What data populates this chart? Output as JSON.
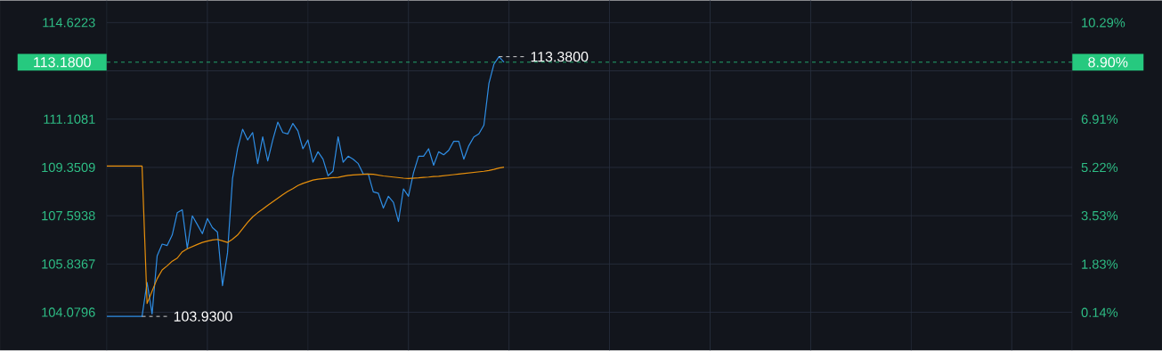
{
  "chart_data": {
    "type": "line",
    "categories": [
      null,
      null,
      null,
      null,
      null,
      null,
      null,
      null,
      null,
      null,
      null,
      null,
      null,
      null,
      null,
      null,
      null,
      null,
      null,
      null,
      null,
      null,
      null,
      null,
      null,
      null,
      null,
      null,
      null,
      null,
      null,
      null,
      null,
      null,
      null,
      null,
      null,
      null,
      null,
      null,
      null,
      null,
      null,
      null,
      null,
      null,
      null,
      null,
      null,
      null,
      null,
      null,
      null,
      null,
      null,
      null,
      null,
      null,
      null,
      null,
      null,
      null,
      null,
      null,
      null,
      null,
      null,
      null,
      null,
      null,
      null,
      null,
      null,
      null,
      null,
      null,
      null,
      null,
      null,
      null,
      null,
      null,
      null,
      null,
      null,
      null,
      null,
      null,
      null,
      null,
      null,
      null,
      null,
      null,
      null,
      null,
      null,
      null,
      null,
      null,
      null,
      null,
      null,
      null,
      null,
      null,
      null,
      null,
      null,
      null,
      null,
      null,
      null,
      null,
      null,
      null,
      null,
      null,
      null,
      null,
      null,
      null,
      null,
      null,
      null,
      null,
      null,
      null,
      null,
      null,
      null,
      null,
      null,
      null,
      null,
      null,
      null,
      null,
      null,
      null,
      null,
      null,
      null,
      null,
      null,
      null,
      null,
      null,
      null,
      null,
      null,
      null,
      null,
      null,
      null,
      null,
      null,
      null,
      null,
      null,
      null,
      null,
      null,
      null,
      null,
      null,
      null,
      null,
      null,
      null,
      null,
      null,
      null,
      null,
      null,
      null,
      null,
      null,
      null,
      null,
      null,
      null,
      null,
      null,
      null,
      null,
      null,
      null,
      null,
      null,
      null,
      null,
      null
    ],
    "ylim": [
      102.69,
      115.43
    ],
    "yticks": [
      104.0796,
      105.8367,
      107.5938,
      109.3509,
      111.1081,
      {
        "value": 112.8652,
        "label": null
      },
      114.6223
    ],
    "y2lim": [
      -1.19,
      11.07
    ],
    "y2ticks": [
      {
        "value": 0.14,
        "label": "0.14%"
      },
      {
        "value": 1.83,
        "label": "1.83%"
      },
      {
        "value": 3.53,
        "label": "3.53%"
      },
      {
        "value": 5.22,
        "label": "5.22%"
      },
      {
        "value": 6.91,
        "label": "6.91%"
      },
      {
        "value": 8.6,
        "label": null
      },
      {
        "value": 10.29,
        "label": "10.29%"
      }
    ],
    "grid": true,
    "series": [
      {
        "color": "#2f8ee5",
        "values": [
          103.93,
          103.93,
          103.93,
          103.93,
          103.93,
          103.93,
          103.93,
          103.93,
          105.16,
          104.02,
          106.13,
          106.56,
          106.51,
          106.89,
          107.7,
          107.81,
          106.41,
          107.59,
          107.27,
          106.94,
          107.49,
          107.16,
          107.0,
          105.05,
          106.24,
          108.95,
          110.03,
          110.74,
          110.35,
          110.62,
          109.49,
          110.46,
          109.59,
          110.35,
          111.0,
          110.62,
          110.57,
          110.95,
          110.68,
          110.03,
          110.35,
          109.54,
          109.92,
          109.65,
          109.05,
          109.22,
          110.46,
          109.54,
          109.76,
          109.65,
          109.49,
          109.11,
          109.11,
          108.46,
          108.41,
          107.87,
          108.3,
          108.08,
          107.38,
          108.57,
          108.3,
          109.16,
          109.76,
          109.76,
          110.03,
          109.43,
          109.92,
          109.81,
          109.97,
          110.3,
          110.3,
          109.65,
          110.14,
          110.46,
          110.57,
          110.89,
          112.41,
          113.11,
          113.38,
          113.18,
          null,
          null,
          null,
          null,
          null,
          null,
          null,
          null,
          null,
          null,
          null,
          null,
          null,
          null,
          null,
          null,
          null,
          null,
          null,
          null,
          null,
          null,
          null,
          null,
          null,
          null,
          null,
          null,
          null,
          null,
          null,
          null,
          null,
          null,
          null,
          null,
          null,
          null,
          null,
          null,
          null,
          null,
          null,
          null,
          null,
          null,
          null,
          null,
          null,
          null,
          null,
          null,
          null,
          null,
          null,
          null,
          null,
          null,
          null,
          null,
          null,
          null,
          null,
          null,
          null,
          null,
          null,
          null,
          null,
          null,
          null,
          null,
          null,
          null,
          null,
          null,
          null,
          null,
          null,
          null,
          null,
          null,
          null,
          null,
          null,
          null,
          null,
          null,
          null,
          null,
          null,
          null,
          null,
          null,
          null,
          null,
          null,
          null,
          null,
          null,
          null,
          null,
          null,
          null,
          null,
          null,
          null,
          null,
          null,
          null,
          null,
          null,
          null
        ]
      },
      {
        "color": "#e8900c",
        "values": [
          109.4,
          109.4,
          109.4,
          109.4,
          109.4,
          109.4,
          109.4,
          109.4,
          104.4,
          104.85,
          105.3,
          105.62,
          105.77,
          105.94,
          106.05,
          106.28,
          106.39,
          106.47,
          106.55,
          106.62,
          106.67,
          106.71,
          106.73,
          106.68,
          106.62,
          106.74,
          106.89,
          107.12,
          107.35,
          107.55,
          107.7,
          107.83,
          107.97,
          108.1,
          108.23,
          108.36,
          108.48,
          108.58,
          108.69,
          108.77,
          108.83,
          108.89,
          108.92,
          108.94,
          108.96,
          108.98,
          108.99,
          109.03,
          109.06,
          109.08,
          109.09,
          109.1,
          109.11,
          109.1,
          109.07,
          109.04,
          109.02,
          109.0,
          108.98,
          108.96,
          108.95,
          108.96,
          108.97,
          108.99,
          109.0,
          109.02,
          109.03,
          109.05,
          109.07,
          109.09,
          109.11,
          109.13,
          109.15,
          109.17,
          109.19,
          109.21,
          109.24,
          109.28,
          109.33,
          109.36,
          null,
          null,
          null,
          null,
          null,
          null,
          null,
          null,
          null,
          null,
          null,
          null,
          null,
          null,
          null,
          null,
          null,
          null,
          null,
          null,
          null,
          null,
          null,
          null,
          null,
          null,
          null,
          null,
          null,
          null,
          null,
          null,
          null,
          null,
          null,
          null,
          null,
          null,
          null,
          null,
          null,
          null,
          null,
          null,
          null,
          null,
          null,
          null,
          null,
          null,
          null,
          null,
          null,
          null,
          null,
          null,
          null,
          null,
          null,
          null,
          null,
          null,
          null,
          null,
          null,
          null,
          null,
          null,
          null,
          null,
          null,
          null,
          null,
          null,
          null,
          null,
          null,
          null,
          null,
          null,
          null,
          null,
          null,
          null,
          null,
          null,
          null,
          null,
          null,
          null,
          null,
          null,
          null,
          null,
          null,
          null,
          null,
          null,
          null,
          null,
          null,
          null,
          null,
          null,
          null,
          null,
          null,
          null,
          null,
          null,
          null,
          null,
          null
        ]
      }
    ],
    "ref_lines": [
      {
        "axis": "y",
        "value": 113.18,
        "label": "113.1800",
        "color": "#26c97f",
        "line_style": "dashed"
      }
    ],
    "annotations": [
      "113.3800",
      "103.9300",
      "8.90%"
    ]
  }
}
